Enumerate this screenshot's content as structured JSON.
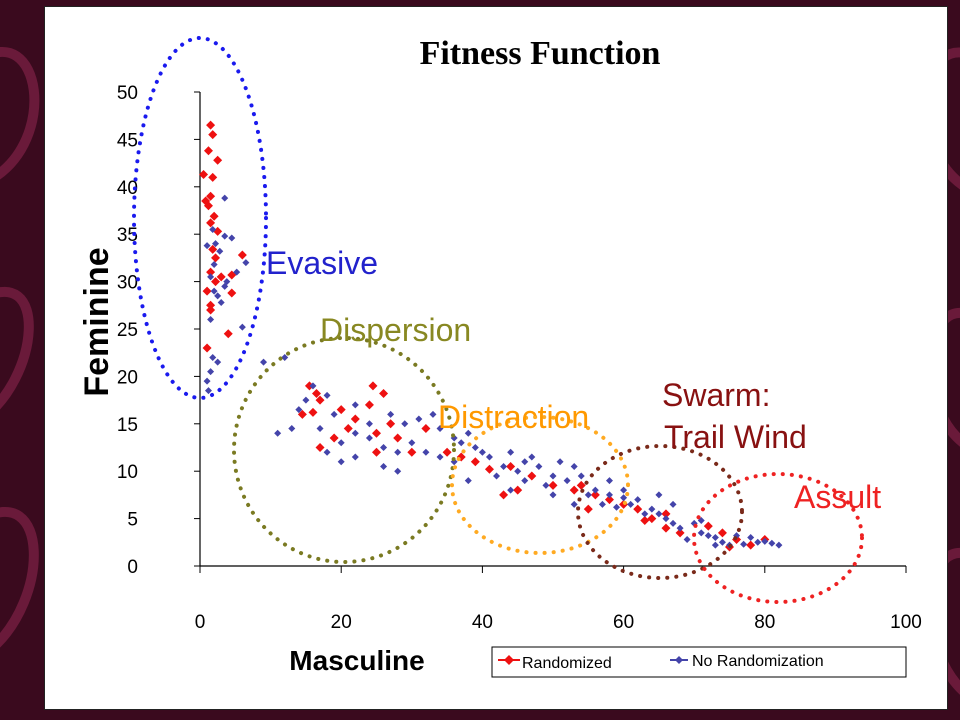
{
  "chart_data": {
    "type": "scatter",
    "title": "Fitness Function",
    "xlabel": "Masculine",
    "ylabel": "Feminine",
    "xlim": [
      0,
      100
    ],
    "ylim": [
      0,
      50
    ],
    "x_ticks": [
      "0",
      "20",
      "40",
      "60",
      "80",
      "100"
    ],
    "y_ticks": [
      "0",
      "5",
      "10",
      "15",
      "20",
      "25",
      "30",
      "35",
      "40",
      "45",
      "50"
    ],
    "grid": false,
    "legend_position": "bottom-right",
    "series": [
      {
        "name": "Randomized",
        "color": "#ee1111",
        "marker": "diamond",
        "points": [
          [
            1.5,
            46.5
          ],
          [
            1.8,
            45.5
          ],
          [
            1.2,
            43.8
          ],
          [
            2.5,
            42.8
          ],
          [
            0.5,
            41.3
          ],
          [
            1.8,
            41
          ],
          [
            1.5,
            39
          ],
          [
            0.8,
            38.5
          ],
          [
            1.2,
            38
          ],
          [
            2,
            36.9
          ],
          [
            1.5,
            36.2
          ],
          [
            2.5,
            35.3
          ],
          [
            1.8,
            33.4
          ],
          [
            2.2,
            32.5
          ],
          [
            6,
            32.8
          ],
          [
            1.5,
            31
          ],
          [
            3,
            30.5
          ],
          [
            4.5,
            30.7
          ],
          [
            2.2,
            30
          ],
          [
            1,
            29
          ],
          [
            4.5,
            28.8
          ],
          [
            1.5,
            27.5
          ],
          [
            1.5,
            27
          ],
          [
            4,
            24.5
          ],
          [
            1,
            23
          ],
          [
            15.5,
            19
          ],
          [
            16.5,
            18.2
          ],
          [
            24.5,
            19
          ],
          [
            26,
            18.2
          ],
          [
            17,
            17.5
          ],
          [
            14.5,
            16
          ],
          [
            16,
            16.2
          ],
          [
            20,
            16.5
          ],
          [
            22,
            15.5
          ],
          [
            24,
            17
          ],
          [
            21,
            14.5
          ],
          [
            19,
            13.5
          ],
          [
            25,
            14
          ],
          [
            28,
            13.5
          ],
          [
            30,
            12
          ],
          [
            32,
            14.5
          ],
          [
            35,
            12
          ],
          [
            27,
            15
          ],
          [
            17,
            12.5
          ],
          [
            25,
            12
          ],
          [
            39,
            11
          ],
          [
            41,
            10.2
          ],
          [
            37,
            11.5
          ],
          [
            44,
            10.5
          ],
          [
            47,
            9.5
          ],
          [
            50,
            8.5
          ],
          [
            53,
            8
          ],
          [
            45,
            8
          ],
          [
            43,
            7.5
          ],
          [
            54,
            8.5
          ],
          [
            56,
            7.5
          ],
          [
            58,
            7
          ],
          [
            55,
            6
          ],
          [
            60,
            6.5
          ],
          [
            62,
            6
          ],
          [
            63,
            4.8
          ],
          [
            66,
            5.5
          ],
          [
            64,
            5
          ],
          [
            66,
            4
          ],
          [
            72,
            4.2
          ],
          [
            74,
            3.5
          ],
          [
            76,
            2.8
          ],
          [
            78,
            2.2
          ],
          [
            80,
            2.8
          ],
          [
            75,
            2
          ],
          [
            68,
            3.5
          ]
        ]
      },
      {
        "name": "No Randomization",
        "color": "#4444aa",
        "marker": "diamond",
        "points": [
          [
            3.5,
            38.8
          ],
          [
            1.8,
            35.5
          ],
          [
            2.2,
            34
          ],
          [
            3.5,
            34.8
          ],
          [
            4.5,
            34.6
          ],
          [
            1,
            33.8
          ],
          [
            2.8,
            33.2
          ],
          [
            6.5,
            32
          ],
          [
            2,
            31.8
          ],
          [
            5.2,
            31
          ],
          [
            1.5,
            30.5
          ],
          [
            3.8,
            30
          ],
          [
            2,
            29
          ],
          [
            3.5,
            29.5
          ],
          [
            2.5,
            28.5
          ],
          [
            3,
            27.8
          ],
          [
            1.5,
            26
          ],
          [
            1.8,
            22
          ],
          [
            2.5,
            21.5
          ],
          [
            1.5,
            20.5
          ],
          [
            1,
            19.5
          ],
          [
            1.2,
            18.5
          ],
          [
            6,
            25.2
          ],
          [
            9,
            21.5
          ],
          [
            12,
            22
          ],
          [
            16,
            19
          ],
          [
            18,
            18
          ],
          [
            15,
            17.5
          ],
          [
            11,
            14
          ],
          [
            13,
            14.5
          ],
          [
            17,
            14.5
          ],
          [
            20,
            13
          ],
          [
            22,
            14
          ],
          [
            24,
            13.5
          ],
          [
            18,
            12
          ],
          [
            22,
            11.5
          ],
          [
            26,
            12.5
          ],
          [
            28,
            12
          ],
          [
            30,
            13
          ],
          [
            32,
            12
          ],
          [
            34,
            11.5
          ],
          [
            36,
            11
          ],
          [
            29,
            15
          ],
          [
            31,
            15.5
          ],
          [
            34,
            14.5
          ],
          [
            37,
            13
          ],
          [
            39,
            12.5
          ],
          [
            41,
            11.5
          ],
          [
            43,
            10.5
          ],
          [
            45,
            10
          ],
          [
            46,
            11
          ],
          [
            48,
            10.5
          ],
          [
            50,
            9.5
          ],
          [
            52,
            9
          ],
          [
            49,
            8.5
          ],
          [
            46,
            9
          ],
          [
            42,
            9.5
          ],
          [
            54,
            9.5
          ],
          [
            56,
            8
          ],
          [
            58,
            7.5
          ],
          [
            60,
            7.2
          ],
          [
            62,
            7
          ],
          [
            55,
            7.5
          ],
          [
            57,
            6.5
          ],
          [
            59,
            6.2
          ],
          [
            61,
            6.5
          ],
          [
            64,
            6
          ],
          [
            65,
            5.5
          ],
          [
            66,
            5
          ],
          [
            67,
            4.5
          ],
          [
            68,
            4
          ],
          [
            70,
            4.5
          ],
          [
            71,
            3.5
          ],
          [
            72,
            3.2
          ],
          [
            73,
            3
          ],
          [
            74,
            2.5
          ],
          [
            75,
            2.2
          ],
          [
            77,
            2.3
          ],
          [
            79,
            2.5
          ],
          [
            80,
            2.6
          ],
          [
            81,
            2.4
          ],
          [
            82,
            2.2
          ],
          [
            69,
            2.8
          ],
          [
            65,
            7.5
          ],
          [
            63,
            5.5
          ],
          [
            38,
            9
          ],
          [
            40,
            12
          ],
          [
            44,
            12
          ],
          [
            47,
            11.5
          ],
          [
            51,
            11
          ],
          [
            53,
            10.5
          ],
          [
            26,
            10.5
          ],
          [
            22,
            17
          ],
          [
            19,
            16
          ],
          [
            14,
            16.5
          ],
          [
            24,
            15
          ],
          [
            27,
            16
          ],
          [
            33,
            16
          ],
          [
            36,
            13.5
          ],
          [
            38,
            14
          ],
          [
            20,
            11
          ],
          [
            28,
            10
          ],
          [
            53,
            6.5
          ],
          [
            60,
            8
          ],
          [
            67,
            6.5
          ],
          [
            78,
            3
          ],
          [
            76,
            3.2
          ],
          [
            73,
            2.2
          ],
          [
            71,
            4.8
          ],
          [
            58,
            9
          ],
          [
            44,
            8
          ],
          [
            50,
            7.5
          ]
        ]
      }
    ],
    "annotations": [
      {
        "text": "Evasive",
        "color": "#2222cc"
      },
      {
        "text": "Dispersion",
        "color": "#888822"
      },
      {
        "text": "Distraction",
        "color": "#ff9900"
      },
      {
        "text": "Swarm:",
        "color": "#881111"
      },
      {
        "text": "Trail Wind",
        "color": "#881111"
      },
      {
        "text": "Assult",
        "color": "#ee2222"
      }
    ]
  }
}
